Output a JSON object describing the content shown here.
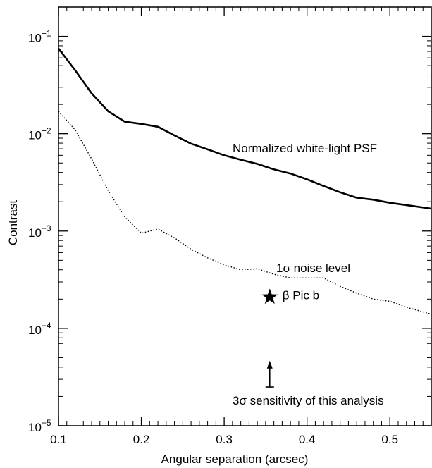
{
  "chart_data": {
    "type": "line",
    "title": "",
    "xlabel": "Angular separation (arcsec)",
    "ylabel": "Contrast",
    "xlim": [
      0.1,
      0.55
    ],
    "ylim": [
      1e-05,
      0.2
    ],
    "yscale": "log",
    "grid": false,
    "x_ticks": [
      0.1,
      0.2,
      0.3,
      0.4,
      0.5
    ],
    "x_tick_labels": [
      "0.1",
      "0.2",
      "0.3",
      "0.4",
      "0.5"
    ],
    "y_ticks": [
      {
        "value": 1e-05,
        "mantissa": "10",
        "exponent": "−5"
      },
      {
        "value": 0.0001,
        "mantissa": "10",
        "exponent": "−4"
      },
      {
        "value": 0.001,
        "mantissa": "10",
        "exponent": "−3"
      },
      {
        "value": 0.01,
        "mantissa": "10",
        "exponent": "−2"
      },
      {
        "value": 0.1,
        "mantissa": "10",
        "exponent": "−1"
      }
    ],
    "series": [
      {
        "label": "Normalized white-light PSF",
        "style": "solid",
        "color": "#000000",
        "x": [
          0.1,
          0.12,
          0.14,
          0.16,
          0.18,
          0.2,
          0.22,
          0.24,
          0.26,
          0.28,
          0.3,
          0.32,
          0.34,
          0.36,
          0.38,
          0.4,
          0.42,
          0.44,
          0.46,
          0.48,
          0.5,
          0.52,
          0.55
        ],
        "y": [
          0.075,
          0.045,
          0.026,
          0.017,
          0.0133,
          0.0126,
          0.0118,
          0.0096,
          0.0079,
          0.0069,
          0.006,
          0.0054,
          0.0049,
          0.0043,
          0.0039,
          0.0034,
          0.0029,
          0.0025,
          0.0022,
          0.0021,
          0.00195,
          0.00185,
          0.0017
        ]
      },
      {
        "label": "1σ noise level",
        "style": "dotted",
        "color": "#000000",
        "x": [
          0.1,
          0.12,
          0.14,
          0.16,
          0.18,
          0.2,
          0.22,
          0.24,
          0.26,
          0.28,
          0.3,
          0.32,
          0.34,
          0.36,
          0.38,
          0.4,
          0.42,
          0.44,
          0.46,
          0.48,
          0.5,
          0.52,
          0.55
        ],
        "y": [
          0.017,
          0.011,
          0.0055,
          0.0026,
          0.0014,
          0.00095,
          0.00105,
          0.00085,
          0.00065,
          0.00053,
          0.00045,
          0.0004,
          0.00041,
          0.00036,
          0.00033,
          0.00033,
          0.00033,
          0.00027,
          0.00023,
          0.0002,
          0.00019,
          0.000165,
          0.00014
        ]
      }
    ],
    "markers": [
      {
        "label": "β Pic b",
        "x": 0.355,
        "y": 0.00021,
        "symbol": "star"
      }
    ],
    "annotations": [
      {
        "label": "3σ sensitivity of this analysis",
        "x": 0.355,
        "y_from": 2.5e-05,
        "y_to": 4.5e-05,
        "style": "arrow-up"
      }
    ]
  }
}
